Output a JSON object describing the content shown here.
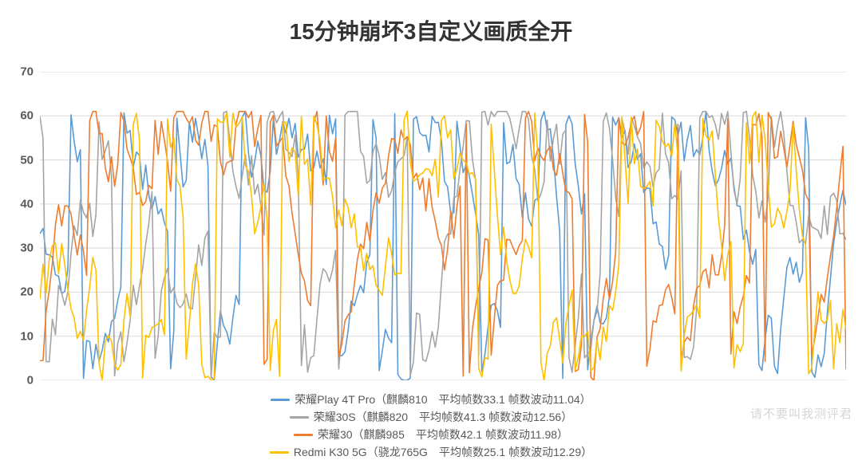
{
  "chart": {
    "type": "line",
    "title": "15分钟崩坏3自定义画质全开",
    "title_fontsize": 28,
    "title_color": "#333333",
    "background_color": "#ffffff",
    "grid_color": "#d9d9d9",
    "axis_label_color": "#595959",
    "axis_label_fontsize": 15,
    "legend_fontsize": 14,
    "ylim": [
      0,
      70
    ],
    "ytick_step": 10,
    "yticks": [
      0,
      10,
      20,
      30,
      40,
      50,
      60,
      70
    ],
    "x_samples": 260,
    "line_width": 1.6,
    "series": [
      {
        "id": "play4tpro",
        "legend": "荣耀Play 4T Pro（麒麟810　平均帧数33.1 帧数波动11.04）",
        "color": "#5b9bd5",
        "mean": 33.1,
        "stdev": 11.04,
        "seed": 11
      },
      {
        "id": "honor30s",
        "legend": "荣耀30S（麒麟820　平均帧数41.3 帧数波动12.56）",
        "color": "#a5a5a5",
        "mean": 41.3,
        "stdev": 12.56,
        "seed": 23
      },
      {
        "id": "honor30",
        "legend": "荣耀30（麒麟985　平均帧数42.1 帧数波动11.98）",
        "color": "#ed7d31",
        "mean": 42.1,
        "stdev": 11.98,
        "seed": 37
      },
      {
        "id": "k30",
        "legend": "Redmi K30 5G（骁龙765G　平均帧数25.1 帧数波动12.29）",
        "color": "#ffc000",
        "mean": 25.1,
        "stdev": 12.29,
        "seed": 53
      }
    ]
  },
  "watermark": "请不要叫我测评君"
}
